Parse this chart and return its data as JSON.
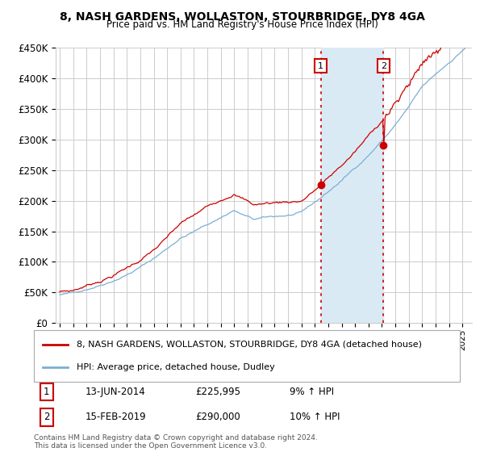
{
  "title": "8, NASH GARDENS, WOLLASTON, STOURBRIDGE, DY8 4GA",
  "subtitle": "Price paid vs. HM Land Registry's House Price Index (HPI)",
  "ylim": [
    0,
    450000
  ],
  "yticks": [
    0,
    50000,
    100000,
    150000,
    200000,
    250000,
    300000,
    350000,
    400000,
    450000
  ],
  "ytick_labels": [
    "£0",
    "£50K",
    "£100K",
    "£150K",
    "£200K",
    "£250K",
    "£300K",
    "£350K",
    "£400K",
    "£450K"
  ],
  "purchase1_date": 2014.45,
  "purchase1_price": 225995,
  "purchase2_date": 2019.12,
  "purchase2_price": 290000,
  "purchase1_label": "13-JUN-2014",
  "purchase1_amount": "£225,995",
  "purchase1_hpi": "9% ↑ HPI",
  "purchase2_label": "15-FEB-2019",
  "purchase2_amount": "£290,000",
  "purchase2_hpi": "10% ↑ HPI",
  "legend_line1": "8, NASH GARDENS, WOLLASTON, STOURBRIDGE, DY8 4GA (detached house)",
  "legend_line2": "HPI: Average price, detached house, Dudley",
  "footer": "Contains HM Land Registry data © Crown copyright and database right 2024.\nThis data is licensed under the Open Government Licence v3.0.",
  "line_color_red": "#cc0000",
  "line_color_blue": "#7bafd4",
  "shaded_color": "#daeaf5",
  "background_color": "#ffffff",
  "grid_color": "#cccccc"
}
